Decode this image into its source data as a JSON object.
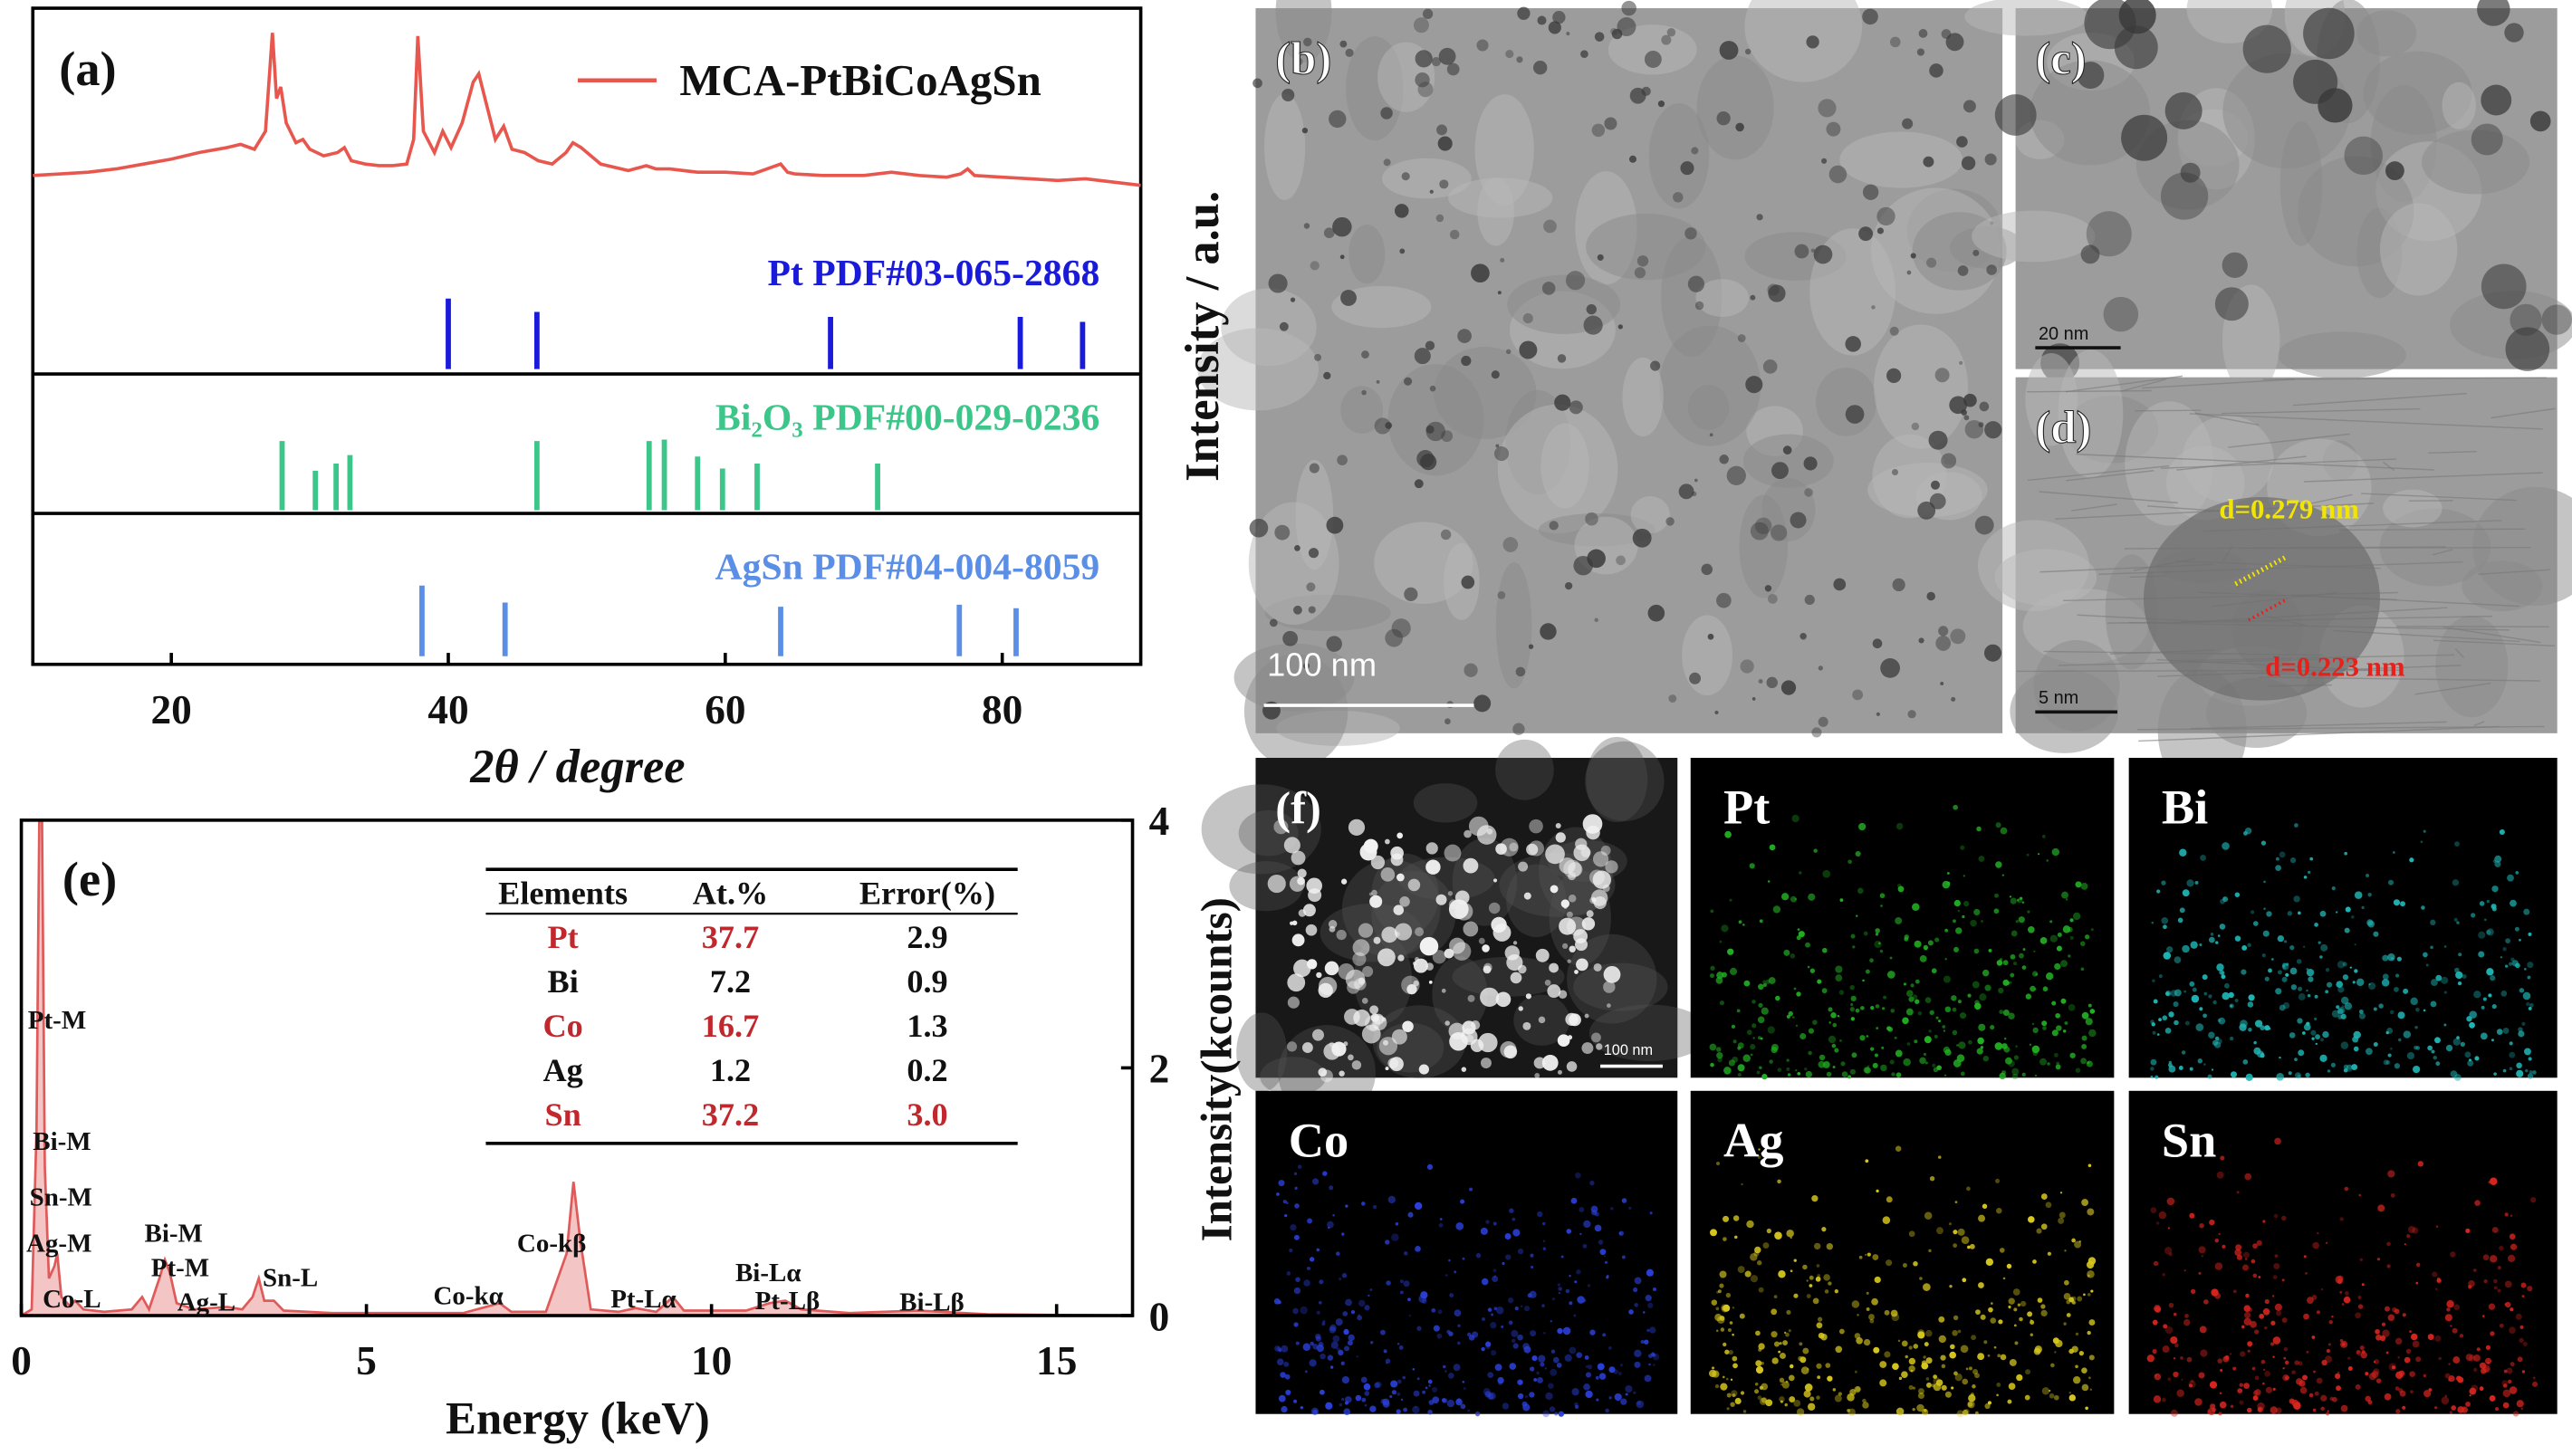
{
  "chart_data": [
    {
      "type": "line",
      "label": "(a)",
      "xlabel": "2θ / degree",
      "ylabel": "Intensity / a.u.",
      "xlim": [
        10,
        90
      ],
      "xticks": [
        20,
        40,
        60,
        80
      ],
      "ylim": [
        0,
        110
      ],
      "series": [
        {
          "name": "MCA-PtBiCoAgSn",
          "color": "#e8574e",
          "x": [
            10,
            12,
            14,
            16,
            18,
            20,
            22,
            24,
            25,
            26,
            26.8,
            27.3,
            27.6,
            27.9,
            28.3,
            29,
            29.5,
            30,
            31,
            32,
            32.5,
            33,
            34,
            35,
            36,
            37,
            37.5,
            37.8,
            38.2,
            39,
            39.6,
            40.2,
            41,
            41.8,
            42.2,
            42.8,
            43.4,
            44,
            44.6,
            45.5,
            46.5,
            47.5,
            48.5,
            49,
            49.6,
            51,
            53,
            54.3,
            55,
            56,
            58,
            60,
            62,
            64,
            64.5,
            65,
            67,
            70,
            72,
            74,
            76,
            77,
            77.5,
            78,
            80,
            82,
            84,
            86,
            88,
            90
          ],
          "values": [
            8,
            9,
            10,
            12,
            15,
            18,
            22,
            25,
            27,
            24,
            35,
            95,
            55,
            62,
            40,
            28,
            30,
            24,
            20,
            22,
            25,
            17,
            15,
            14,
            14,
            15,
            30,
            93,
            35,
            22,
            35,
            25,
            40,
            65,
            70,
            50,
            30,
            38,
            24,
            22,
            17,
            15,
            22,
            28,
            25,
            15,
            11,
            14,
            12,
            12,
            10,
            10,
            9,
            15,
            10,
            9,
            8,
            8,
            10,
            8,
            7,
            9,
            12,
            8,
            7,
            6,
            5,
            6,
            4,
            2
          ]
        }
      ],
      "reference_ylim": [
        0,
        100
      ],
      "references": [
        {
          "name": "Pt PDF#03-065-2868",
          "color": "#1a1adb",
          "x": [
            40.0,
            46.4,
            67.6,
            81.3,
            85.8
          ],
          "values": [
            100,
            81,
            74,
            74,
            67
          ]
        },
        {
          "name": "Bi₂O₃ PDF#00-029-0236",
          "color": "#3cc68a",
          "x": [
            28.0,
            30.4,
            31.9,
            32.9,
            46.4,
            54.5,
            55.6,
            58.0,
            59.8,
            62.3,
            71.0
          ],
          "values": [
            98,
            56,
            66,
            78,
            98,
            98,
            100,
            76,
            59,
            66,
            66
          ]
        },
        {
          "name": "AgSn PDF#04-004-8059",
          "color": "#5b8ee6",
          "x": [
            38.1,
            44.1,
            64.0,
            76.9,
            81.0
          ],
          "values": [
            100,
            76,
            70,
            73,
            68
          ]
        }
      ]
    },
    {
      "type": "area",
      "label": "(e)",
      "xlabel": "Energy (keV)",
      "ylabel": "Intensity(kcounts)",
      "xlim": [
        0,
        16.1
      ],
      "xticks": [
        0,
        5,
        10,
        15
      ],
      "ylim": [
        0,
        4
      ],
      "yticks": [
        0,
        2,
        4
      ],
      "series": [
        {
          "color": "#e05a5a",
          "x": [
            0,
            0.15,
            0.22,
            0.26,
            0.3,
            0.34,
            0.4,
            0.48,
            0.52,
            0.58,
            0.7,
            0.78,
            0.9,
            1.2,
            1.6,
            1.75,
            1.85,
            2.0,
            2.08,
            2.15,
            2.25,
            2.5,
            2.98,
            3.2,
            3.35,
            3.44,
            3.52,
            3.66,
            3.8,
            4.5,
            5.5,
            6.4,
            6.93,
            7.1,
            7.6,
            7.9,
            8.0,
            8.1,
            8.25,
            8.65,
            8.9,
            9.2,
            9.44,
            9.6,
            10.5,
            10.84,
            11.07,
            11.3,
            12.0,
            13.0,
            14,
            16.1
          ],
          "values": [
            0,
            0.05,
            1.5,
            4,
            4,
            1.2,
            0.3,
            0.4,
            0.5,
            0.15,
            0.08,
            0.12,
            0.05,
            0.03,
            0.05,
            0.15,
            0.05,
            0.3,
            0.45,
            0.35,
            0.1,
            0.05,
            0.07,
            0.05,
            0.15,
            0.3,
            0.12,
            0.12,
            0.04,
            0.02,
            0.02,
            0.02,
            0.1,
            0.03,
            0.03,
            0.5,
            1.08,
            0.6,
            0.05,
            0.03,
            0.06,
            0.03,
            0.15,
            0.04,
            0.04,
            0.1,
            0.12,
            0.05,
            0.02,
            0.04,
            0.01,
            0
          ]
        }
      ],
      "annotations": [
        "Pt-M",
        "Bi-M",
        "Sn-M",
        "Ag-M",
        "Co-L",
        "Bi-M",
        "Pt-M",
        "Ag-L",
        "Sn-L",
        "Co-kα",
        "Co-kβ",
        "Pt-Lα",
        "Bi-Lα",
        "Pt-Lβ",
        "Bi-Lβ"
      ]
    }
  ],
  "table": {
    "columns": [
      "Elements",
      "At.%",
      "Error(%)"
    ],
    "rows": [
      [
        "Pt",
        "37.7",
        "2.9"
      ],
      [
        "Bi",
        "7.2",
        "0.9"
      ],
      [
        "Co",
        "16.7",
        "1.3"
      ],
      [
        "Ag",
        "1.2",
        "0.2"
      ],
      [
        "Sn",
        "37.2",
        "3.0"
      ]
    ],
    "highlight_rows": [
      0,
      2,
      4
    ],
    "highlight_color": "#c0282d"
  },
  "images": [
    {
      "label": "(b)",
      "scale_bar": "100 nm"
    },
    {
      "label": "(c)",
      "scale_bar": "20 nm"
    },
    {
      "label": "(d)",
      "scale_bar": "5 nm",
      "annotations": [
        {
          "text": "d=0.279 nm",
          "color": "#f2e600"
        },
        {
          "text": "d=0.223 nm",
          "color": "#e8201a"
        }
      ]
    },
    {
      "label": "(f)",
      "scale_bar": "100 nm"
    },
    {
      "label": "Pt",
      "color": "#22b022"
    },
    {
      "label": "Bi",
      "color": "#1fb5b5"
    },
    {
      "label": "Co",
      "color": "#2a3fd8"
    },
    {
      "label": "Ag",
      "color": "#d8c81e"
    },
    {
      "label": "Sn",
      "color": "#d8241e"
    }
  ]
}
